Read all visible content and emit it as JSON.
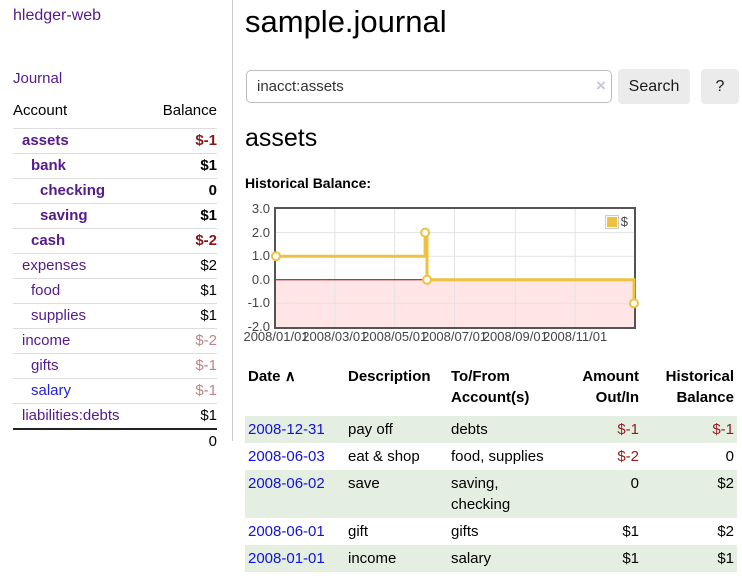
{
  "app": {
    "brand": "hledger-web"
  },
  "sidebar": {
    "journal_link": "Journal",
    "accounts_table": {
      "headers": {
        "account": "Account",
        "balance": "Balance"
      },
      "accounts": [
        {
          "name": "assets",
          "balance": "$-1",
          "depth": 1,
          "bold": true,
          "link_color": "purple"
        },
        {
          "name": "bank",
          "balance": "$1",
          "depth": 2,
          "bold": true,
          "link_color": "purple"
        },
        {
          "name": "checking",
          "balance": "0",
          "depth": 3,
          "bold": true,
          "link_color": "purple"
        },
        {
          "name": "saving",
          "balance": "$1",
          "depth": 3,
          "bold": true,
          "link_color": "purple"
        },
        {
          "name": "cash",
          "balance": "$-2",
          "depth": 2,
          "bold": true,
          "link_color": "purple"
        },
        {
          "name": "expenses",
          "balance": "$2",
          "depth": 1,
          "bold": false,
          "link_color": "purple"
        },
        {
          "name": "food",
          "balance": "$1",
          "depth": 2,
          "bold": false,
          "link_color": "purple"
        },
        {
          "name": "supplies",
          "balance": "$1",
          "depth": 2,
          "bold": false,
          "link_color": "purple"
        },
        {
          "name": "income",
          "balance": "$-2",
          "depth": 1,
          "bold": false,
          "link_color": "purple"
        },
        {
          "name": "gifts",
          "balance": "$-1",
          "depth": 2,
          "bold": false,
          "link_color": "purple"
        },
        {
          "name": "salary",
          "balance": "$-1",
          "depth": 2,
          "bold": false,
          "link_color": "blue"
        },
        {
          "name": "liabilities:debts",
          "balance": "$1",
          "depth": 1,
          "bold": false,
          "link_color": "purple"
        }
      ],
      "total": "0"
    }
  },
  "main": {
    "title": "sample.journal",
    "search": {
      "value": "inacct:assets",
      "clear_icon": "×",
      "search_button": "Search",
      "help_button": "?"
    },
    "account_heading": "assets",
    "chart_label": "Historical Balance:"
  },
  "chart_data": {
    "type": "line",
    "style": "step",
    "title": "Historical Balance",
    "series": [
      {
        "name": "$",
        "color": "#edc240",
        "points": [
          [
            "2008-01-01",
            1.0
          ],
          [
            "2008-06-01",
            2.0
          ],
          [
            "2008-06-03",
            0.0
          ],
          [
            "2008-12-31",
            -1.0
          ]
        ]
      }
    ],
    "xlim": [
      "2008-01-01",
      "2008-12-31"
    ],
    "ylim": [
      -2.0,
      3.0
    ],
    "y_ticks": [
      "3.0",
      "2.0",
      "1.0",
      "0.0",
      "-1.0",
      "-2.0"
    ],
    "x_ticks": [
      "2008/01/01",
      "2008/03/01",
      "2008/05/01",
      "2008/07/01",
      "2008/09/01",
      "2008/11/01"
    ],
    "legend": [
      "$"
    ],
    "legend_position": "top-right",
    "grid": true,
    "grid_color": "#e3e3e3",
    "zero_line_color": "#8b0000",
    "negative_region_color": "rgba(255,0,0,0.10)"
  },
  "register": {
    "headers": {
      "date": "Date",
      "sort_icon": "∧",
      "description": "Description",
      "account": "To/From\nAccount(s)",
      "amount": "Amount\nOut/In",
      "balance": "Historical\nBalance"
    },
    "rows": [
      {
        "date": "2008-12-31",
        "description": "pay off",
        "accounts": "debts",
        "amount": "$-1",
        "balance": "$-1"
      },
      {
        "date": "2008-06-03",
        "description": "eat & shop",
        "accounts": "food, supplies",
        "amount": "$-2",
        "balance": "0"
      },
      {
        "date": "2008-06-02",
        "description": "save",
        "accounts": "saving, checking",
        "amount": "0",
        "balance": "$2"
      },
      {
        "date": "2008-06-01",
        "description": "gift",
        "accounts": "gifts",
        "amount": "$1",
        "balance": "$2"
      },
      {
        "date": "2008-01-01",
        "description": "income",
        "accounts": "salary",
        "amount": "$1",
        "balance": "$1"
      }
    ]
  }
}
